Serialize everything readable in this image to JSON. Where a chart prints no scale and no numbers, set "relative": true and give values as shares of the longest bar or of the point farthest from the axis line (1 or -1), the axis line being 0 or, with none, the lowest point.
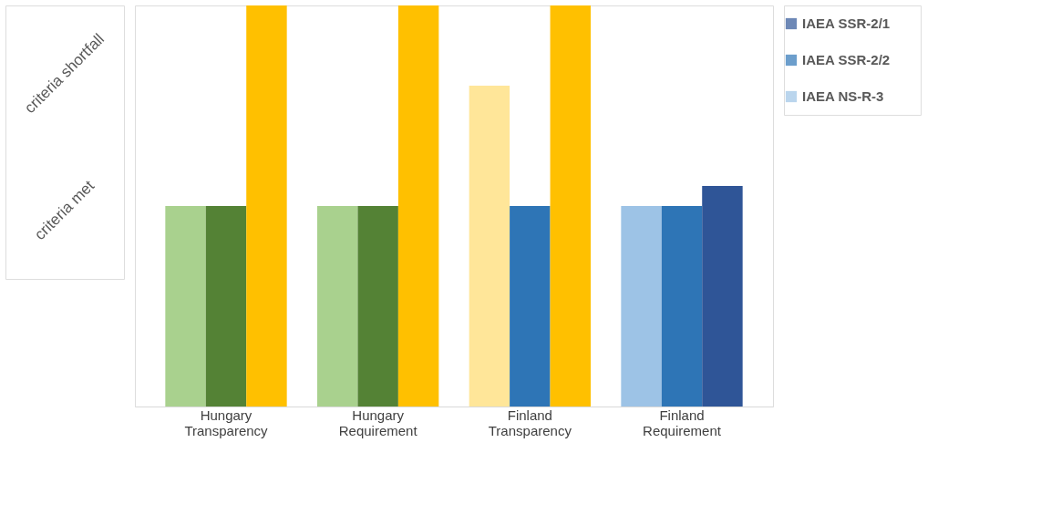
{
  "chart_data": {
    "type": "bar",
    "categories": [
      "Hungary Transparency",
      "Hungary Requirement",
      "Finland Transparency",
      "Finland Requirement"
    ],
    "series": [
      {
        "name": "IAEA NS-R-3",
        "color": "#9dc3e6",
        "colors": [
          "#a9d18e",
          "#a9d18e",
          "#ffe699",
          "#9dc3e6"
        ],
        "values": [
          0.5,
          0.5,
          0.8,
          0.5
        ]
      },
      {
        "name": "IAEA SSR-2/2",
        "color": "#2e75b6",
        "colors": [
          "#548235",
          "#548235",
          "#2e75b6",
          "#2e75b6"
        ],
        "values": [
          0.5,
          0.5,
          0.5,
          0.5
        ]
      },
      {
        "name": "IAEA SSR-2/1",
        "color": "#2f5597",
        "colors": [
          "#ffc000",
          "#ffc000",
          "#ffc000",
          "#2f5597"
        ],
        "values": [
          1,
          1,
          1,
          0.55
        ]
      }
    ],
    "relative": true,
    "annotations": [
      "criteria shortfall",
      "criteria met"
    ],
    "legend": "right"
  }
}
